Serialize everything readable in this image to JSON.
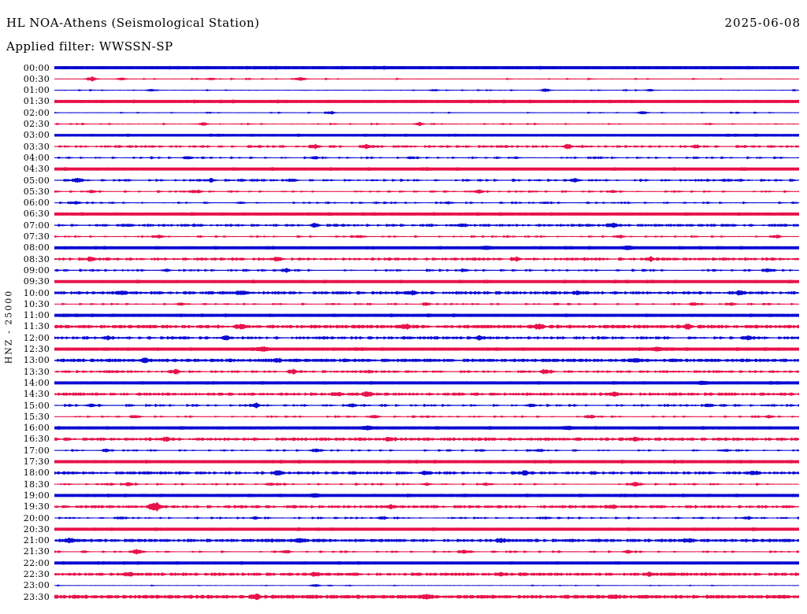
{
  "header": {
    "station_line": "HL NOA-Athens (Seismological Station)",
    "filter_line": "Applied filter: WWSSN-SP",
    "date": "2025-06-08"
  },
  "axis": {
    "ylabel": "HNZ - 25000",
    "minutes_per_row": 30,
    "n_rows": 48
  },
  "colors": {
    "trace_blue": "#0b0bd3",
    "trace_red": "#e8124a",
    "text": "#000000",
    "background": "#ffffff"
  },
  "chart_data": {
    "type": "line",
    "subtype": "helicorder-dayplot",
    "title": "HL NOA-Athens (Seismological Station)",
    "filter": "WWSSN-SP",
    "date": "2025-06-08",
    "channel": "HNZ",
    "scale_label": "25000",
    "minutes_per_row": 30,
    "row_color_cycle": [
      "blue",
      "red"
    ],
    "legend": "48 half-hour traces, 00:00 to 23:30; activity = estimated amplitude class; bursts = [position fraction along row, relative amplitude]",
    "rows": [
      {
        "time": "00:00",
        "color": "blue",
        "activity": "saturated",
        "base": 1.9,
        "density": 0.02,
        "spike": 0.3,
        "bursts": []
      },
      {
        "time": "00:30",
        "color": "red",
        "activity": "quiet",
        "base": 0.5,
        "density": 0.04,
        "spike": 0.7,
        "bursts": [
          [
            0.05,
            1.1
          ],
          [
            0.09,
            0.7
          ],
          [
            0.21,
            0.7
          ],
          [
            0.33,
            0.9
          ]
        ]
      },
      {
        "time": "01:00",
        "color": "blue",
        "activity": "quiet",
        "base": 0.5,
        "density": 0.03,
        "spike": 0.6,
        "bursts": [
          [
            0.13,
            0.6
          ],
          [
            0.51,
            0.6
          ],
          [
            0.66,
            0.9
          ],
          [
            0.8,
            0.6
          ]
        ]
      },
      {
        "time": "01:30",
        "color": "red",
        "activity": "saturated",
        "base": 1.9,
        "density": 0.02,
        "spike": 0.3,
        "bursts": []
      },
      {
        "time": "02:00",
        "color": "blue",
        "activity": "quiet",
        "base": 0.5,
        "density": 0.03,
        "spike": 0.6,
        "bursts": [
          [
            0.37,
            0.7
          ],
          [
            0.79,
            0.9
          ]
        ]
      },
      {
        "time": "02:30",
        "color": "red",
        "activity": "quiet",
        "base": 0.5,
        "density": 0.04,
        "spike": 0.7,
        "bursts": [
          [
            0.2,
            0.9
          ],
          [
            0.49,
            0.8
          ]
        ]
      },
      {
        "time": "03:00",
        "color": "blue",
        "activity": "saturated",
        "base": 1.6,
        "density": 0.02,
        "spike": 0.3,
        "bursts": []
      },
      {
        "time": "03:30",
        "color": "red",
        "activity": "moderate",
        "base": 0.55,
        "density": 0.22,
        "spike": 0.9,
        "bursts": [
          [
            0.35,
            0.9
          ],
          [
            0.42,
            1.0
          ],
          [
            0.69,
            1.0
          ],
          [
            0.86,
            0.7
          ]
        ]
      },
      {
        "time": "04:00",
        "color": "blue",
        "activity": "light",
        "base": 0.5,
        "density": 0.1,
        "spike": 0.9,
        "bursts": [
          [
            0.18,
            1.0
          ],
          [
            0.35,
            0.9
          ],
          [
            0.48,
            0.7
          ],
          [
            0.62,
            0.6
          ]
        ]
      },
      {
        "time": "04:30",
        "color": "red",
        "activity": "saturated",
        "base": 1.9,
        "density": 0.02,
        "spike": 0.3,
        "bursts": []
      },
      {
        "time": "05:00",
        "color": "blue",
        "activity": "moderate",
        "base": 0.55,
        "density": 0.16,
        "spike": 0.9,
        "bursts": [
          [
            0.03,
            1.0
          ],
          [
            0.21,
            0.8
          ],
          [
            0.32,
            0.9
          ],
          [
            0.7,
            1.0
          ],
          [
            0.9,
            0.8
          ]
        ]
      },
      {
        "time": "05:30",
        "color": "red",
        "activity": "light",
        "base": 0.5,
        "density": 0.09,
        "spike": 0.8,
        "bursts": [
          [
            0.05,
            0.9
          ],
          [
            0.19,
            0.8
          ],
          [
            0.57,
            1.0
          ],
          [
            0.75,
            0.6
          ]
        ]
      },
      {
        "time": "06:00",
        "color": "blue",
        "activity": "light",
        "base": 0.5,
        "density": 0.09,
        "spike": 0.8,
        "bursts": [
          [
            0.03,
            0.9
          ],
          [
            0.25,
            0.6
          ],
          [
            0.53,
            0.7
          ],
          [
            0.66,
            0.6
          ]
        ]
      },
      {
        "time": "06:30",
        "color": "red",
        "activity": "saturated",
        "base": 1.9,
        "density": 0.02,
        "spike": 0.3,
        "bursts": []
      },
      {
        "time": "07:00",
        "color": "blue",
        "activity": "dense",
        "base": 0.6,
        "density": 0.3,
        "spike": 0.9,
        "bursts": [
          [
            0.1,
            0.8
          ],
          [
            0.35,
            0.9
          ],
          [
            0.55,
            0.8
          ],
          [
            0.75,
            0.9
          ]
        ]
      },
      {
        "time": "07:30",
        "color": "red",
        "activity": "light",
        "base": 0.5,
        "density": 0.09,
        "spike": 0.8,
        "bursts": [
          [
            0.14,
            0.8
          ],
          [
            0.41,
            0.9
          ],
          [
            0.76,
            0.7
          ],
          [
            0.97,
            1.0
          ]
        ]
      },
      {
        "time": "08:00",
        "color": "blue",
        "activity": "saturated",
        "base": 1.9,
        "density": 0.02,
        "spike": 0.3,
        "bursts": [
          [
            0.58,
            0.5
          ],
          [
            0.77,
            0.6
          ]
        ]
      },
      {
        "time": "08:30",
        "color": "red",
        "activity": "dense",
        "base": 0.6,
        "density": 0.3,
        "spike": 1.0,
        "bursts": [
          [
            0.05,
            1.0
          ],
          [
            0.3,
            1.1
          ],
          [
            0.62,
            0.9
          ],
          [
            0.8,
            1.0
          ]
        ]
      },
      {
        "time": "09:00",
        "color": "blue",
        "activity": "moderate",
        "base": 0.55,
        "density": 0.15,
        "spike": 0.9,
        "bursts": [
          [
            0.15,
            0.8
          ],
          [
            0.31,
            1.2
          ],
          [
            0.55,
            0.8
          ],
          [
            0.96,
            0.9
          ]
        ]
      },
      {
        "time": "09:30",
        "color": "red",
        "activity": "saturated",
        "base": 1.9,
        "density": 0.02,
        "spike": 0.3,
        "bursts": []
      },
      {
        "time": "10:00",
        "color": "blue",
        "activity": "dense",
        "base": 0.65,
        "density": 0.38,
        "spike": 1.0,
        "bursts": [
          [
            0.09,
            1.0
          ],
          [
            0.25,
            1.0
          ],
          [
            0.48,
            0.9
          ],
          [
            0.7,
            1.1
          ],
          [
            0.92,
            1.0
          ]
        ]
      },
      {
        "time": "10:30",
        "color": "red",
        "activity": "light",
        "base": 0.5,
        "density": 0.08,
        "spike": 0.8,
        "bursts": [
          [
            0.17,
            0.9
          ],
          [
            0.5,
            0.8
          ],
          [
            0.86,
            1.0
          ],
          [
            0.91,
            0.9
          ]
        ]
      },
      {
        "time": "11:00",
        "color": "blue",
        "activity": "saturated",
        "base": 1.9,
        "density": 0.02,
        "spike": 0.3,
        "bursts": []
      },
      {
        "time": "11:30",
        "color": "red",
        "activity": "heavy",
        "base": 0.7,
        "density": 0.5,
        "spike": 1.1,
        "bursts": [
          [
            0.25,
            0.9
          ],
          [
            0.47,
            1.2
          ],
          [
            0.65,
            1.3
          ],
          [
            0.85,
            1.0
          ]
        ]
      },
      {
        "time": "12:00",
        "color": "blue",
        "activity": "dense",
        "base": 0.6,
        "density": 0.3,
        "spike": 1.0,
        "bursts": [
          [
            0.07,
            1.0
          ],
          [
            0.23,
            1.0
          ],
          [
            0.57,
            1.1
          ],
          [
            0.93,
            1.0
          ]
        ]
      },
      {
        "time": "12:30",
        "color": "red",
        "activity": "saturated",
        "base": 1.9,
        "density": 0.02,
        "spike": 0.3,
        "bursts": [
          [
            0.28,
            0.8
          ],
          [
            0.81,
            0.6
          ]
        ]
      },
      {
        "time": "13:00",
        "color": "blue",
        "activity": "heavy",
        "base": 0.75,
        "density": 0.48,
        "spike": 1.0,
        "bursts": [
          [
            0.12,
            1.0
          ],
          [
            0.3,
            0.9
          ],
          [
            0.78,
            1.1
          ]
        ]
      },
      {
        "time": "13:30",
        "color": "red",
        "activity": "moderate",
        "base": 0.55,
        "density": 0.18,
        "spike": 0.9,
        "bursts": [
          [
            0.16,
            1.1
          ],
          [
            0.32,
            1.2
          ],
          [
            0.42,
            0.8
          ],
          [
            0.66,
            1.3
          ]
        ]
      },
      {
        "time": "14:00",
        "color": "blue",
        "activity": "saturated",
        "base": 1.9,
        "density": 0.02,
        "spike": 0.3,
        "bursts": [
          [
            0.87,
            0.5
          ]
        ]
      },
      {
        "time": "14:30",
        "color": "red",
        "activity": "dense",
        "base": 0.65,
        "density": 0.35,
        "spike": 1.0,
        "bursts": [
          [
            0.38,
            1.0
          ],
          [
            0.42,
            1.2
          ],
          [
            0.75,
            0.9
          ]
        ]
      },
      {
        "time": "15:00",
        "color": "blue",
        "activity": "moderate",
        "base": 0.55,
        "density": 0.15,
        "spike": 1.0,
        "bursts": [
          [
            0.05,
            1.0
          ],
          [
            0.27,
            1.0
          ],
          [
            0.4,
            1.1
          ],
          [
            0.64,
            1.0
          ],
          [
            0.88,
            0.9
          ]
        ]
      },
      {
        "time": "15:30",
        "color": "red",
        "activity": "light",
        "base": 0.5,
        "density": 0.09,
        "spike": 0.8,
        "bursts": [
          [
            0.11,
            0.8
          ],
          [
            0.43,
            1.0
          ],
          [
            0.72,
            0.9
          ],
          [
            0.96,
            0.8
          ]
        ]
      },
      {
        "time": "16:00",
        "color": "blue",
        "activity": "saturated",
        "base": 1.9,
        "density": 0.02,
        "spike": 0.3,
        "bursts": [
          [
            0.42,
            0.6
          ],
          [
            0.69,
            0.5
          ]
        ]
      },
      {
        "time": "16:30",
        "color": "red",
        "activity": "dense",
        "base": 0.65,
        "density": 0.4,
        "spike": 1.0,
        "bursts": [
          [
            0.15,
            1.0
          ],
          [
            0.45,
            1.0
          ],
          [
            0.78,
            1.1
          ]
        ]
      },
      {
        "time": "17:00",
        "color": "blue",
        "activity": "light",
        "base": 0.5,
        "density": 0.1,
        "spike": 0.8,
        "bursts": [
          [
            0.07,
            0.8
          ],
          [
            0.35,
            0.9
          ],
          [
            0.65,
            0.8
          ],
          [
            0.9,
            0.7
          ]
        ]
      },
      {
        "time": "17:30",
        "color": "red",
        "activity": "saturated",
        "base": 1.9,
        "density": 0.02,
        "spike": 0.3,
        "bursts": []
      },
      {
        "time": "18:00",
        "color": "blue",
        "activity": "dense",
        "base": 0.6,
        "density": 0.35,
        "spike": 1.0,
        "bursts": [
          [
            0.3,
            1.0
          ],
          [
            0.5,
            1.1
          ],
          [
            0.63,
            1.0
          ],
          [
            0.94,
            1.0
          ]
        ]
      },
      {
        "time": "18:30",
        "color": "red",
        "activity": "light",
        "base": 0.5,
        "density": 0.09,
        "spike": 0.9,
        "bursts": [
          [
            0.1,
            1.0
          ],
          [
            0.29,
            0.9
          ],
          [
            0.5,
            0.8
          ],
          [
            0.58,
            0.9
          ],
          [
            0.78,
            1.2
          ]
        ]
      },
      {
        "time": "19:00",
        "color": "blue",
        "activity": "saturated",
        "base": 1.9,
        "density": 0.02,
        "spike": 0.3,
        "bursts": [
          [
            0.35,
            0.5
          ]
        ]
      },
      {
        "time": "19:30",
        "color": "red",
        "activity": "dense",
        "base": 0.6,
        "density": 0.35,
        "spike": 1.0,
        "bursts": [
          [
            0.135,
            2.4
          ],
          [
            0.45,
            0.9
          ],
          [
            0.75,
            1.0
          ]
        ]
      },
      {
        "time": "20:00",
        "color": "blue",
        "activity": "light",
        "base": 0.5,
        "density": 0.1,
        "spike": 0.8,
        "bursts": [
          [
            0.09,
            0.8
          ],
          [
            0.27,
            0.9
          ],
          [
            0.44,
            0.8
          ],
          [
            0.66,
            0.7
          ],
          [
            0.93,
            0.9
          ]
        ]
      },
      {
        "time": "20:30",
        "color": "red",
        "activity": "saturated",
        "base": 1.9,
        "density": 0.02,
        "spike": 0.3,
        "bursts": []
      },
      {
        "time": "21:00",
        "color": "blue",
        "activity": "heavy",
        "base": 0.7,
        "density": 0.45,
        "spike": 1.0,
        "bursts": [
          [
            0.02,
            1.0
          ],
          [
            0.33,
            0.9
          ],
          [
            0.6,
            1.0
          ],
          [
            0.85,
            0.9
          ]
        ]
      },
      {
        "time": "21:30",
        "color": "red",
        "activity": "light",
        "base": 0.5,
        "density": 0.09,
        "spike": 0.9,
        "bursts": [
          [
            0.11,
            1.2
          ],
          [
            0.31,
            0.9
          ],
          [
            0.55,
            0.8
          ],
          [
            0.77,
            0.9
          ]
        ]
      },
      {
        "time": "22:00",
        "color": "blue",
        "activity": "saturated",
        "base": 1.9,
        "density": 0.02,
        "spike": 0.3,
        "bursts": []
      },
      {
        "time": "22:30",
        "color": "red",
        "activity": "dense",
        "base": 0.65,
        "density": 0.4,
        "spike": 1.0,
        "bursts": [
          [
            0.1,
            1.0
          ],
          [
            0.35,
            1.1
          ],
          [
            0.6,
            0.9
          ],
          [
            0.8,
            1.0
          ]
        ]
      },
      {
        "time": "23:00",
        "color": "blue",
        "activity": "quiet",
        "base": 0.45,
        "density": 0.02,
        "spike": 0.5,
        "bursts": [
          [
            0.35,
            0.8
          ]
        ]
      },
      {
        "time": "23:30",
        "color": "red",
        "activity": "heavy",
        "base": 0.8,
        "density": 0.55,
        "spike": 1.1,
        "bursts": [
          [
            0.27,
            1.2
          ],
          [
            0.5,
            1.0
          ],
          [
            0.75,
            1.0
          ]
        ]
      }
    ]
  }
}
